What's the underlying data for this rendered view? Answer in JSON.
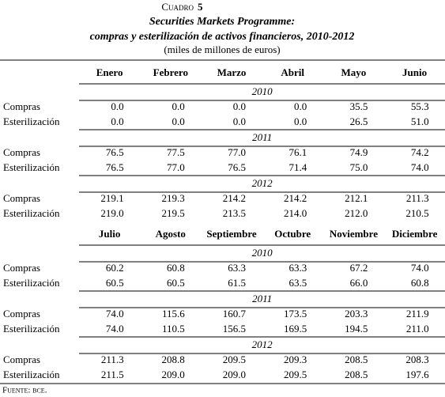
{
  "header": {
    "label": "Cuadro",
    "number": "5",
    "title_line1": "Securities Markets Programme:",
    "title_line2": "compras y esterilización de activos financieros, 2010-2012",
    "units": "(miles de millones de euros)"
  },
  "panels": [
    {
      "columns": [
        "Enero",
        "Febrero",
        "Marzo",
        "Abril",
        "Mayo",
        "Junio"
      ],
      "sections": [
        {
          "year": "2010",
          "rows": [
            {
              "label": "Compras",
              "values": [
                "0.0",
                "0.0",
                "0.0",
                "0.0",
                "35.5",
                "55.3"
              ]
            },
            {
              "label": "Esterilización",
              "values": [
                "0.0",
                "0.0",
                "0.0",
                "0.0",
                "26.5",
                "51.0"
              ]
            }
          ]
        },
        {
          "year": "2011",
          "rows": [
            {
              "label": "Compras",
              "values": [
                "76.5",
                "77.5",
                "77.0",
                "76.1",
                "74.9",
                "74.2"
              ]
            },
            {
              "label": "Esterilización",
              "values": [
                "76.5",
                "77.0",
                "76.5",
                "71.4",
                "75.0",
                "74.0"
              ]
            }
          ]
        },
        {
          "year": "2012",
          "rows": [
            {
              "label": "Compras",
              "values": [
                "219.1",
                "219.3",
                "214.2",
                "214.2",
                "212.1",
                "211.3"
              ]
            },
            {
              "label": "Esterilización",
              "values": [
                "219.0",
                "219.5",
                "213.5",
                "214.0",
                "212.0",
                "210.5"
              ]
            }
          ]
        }
      ]
    },
    {
      "columns": [
        "Julio",
        "Agosto",
        "Septiembre",
        "Octubre",
        "Noviembre",
        "Diciembre"
      ],
      "sections": [
        {
          "year": "2010",
          "rows": [
            {
              "label": "Compras",
              "values": [
                "60.2",
                "60.8",
                "63.3",
                "63.3",
                "67.2",
                "74.0"
              ]
            },
            {
              "label": "Esterilización",
              "values": [
                "60.5",
                "60.5",
                "61.5",
                "63.5",
                "66.0",
                "60.8"
              ]
            }
          ]
        },
        {
          "year": "2011",
          "rows": [
            {
              "label": "Compras",
              "values": [
                "74.0",
                "115.6",
                "160.7",
                "173.5",
                "203.3",
                "211.9"
              ]
            },
            {
              "label": "Esterilización",
              "values": [
                "74.0",
                "110.5",
                "156.5",
                "169.5",
                "194.5",
                "211.0"
              ]
            }
          ]
        },
        {
          "year": "2012",
          "rows": [
            {
              "label": "Compras",
              "values": [
                "211.3",
                "208.8",
                "209.5",
                "209.3",
                "208.5",
                "208.3"
              ]
            },
            {
              "label": "Esterilización",
              "values": [
                "211.5",
                "209.0",
                "209.0",
                "209.5",
                "208.5",
                "197.6"
              ]
            }
          ]
        }
      ]
    }
  ],
  "source": "Fuente: bce."
}
